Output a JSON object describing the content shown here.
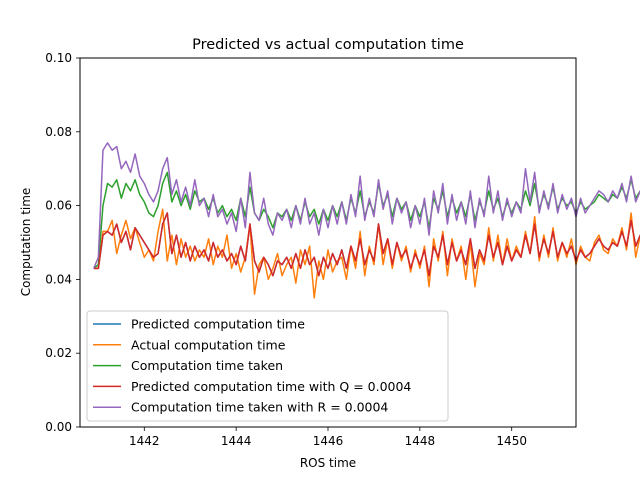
{
  "chart_data": {
    "type": "line",
    "title": "Predicted vs actual computation time",
    "xlabel": "ROS time",
    "ylabel": "Computation time",
    "xlim": [
      1440.6,
      1451.4
    ],
    "ylim": [
      0.0,
      0.1
    ],
    "xticks": [
      {
        "value": 1442,
        "label": "1442"
      },
      {
        "value": 1444,
        "label": "1444"
      },
      {
        "value": 1446,
        "label": "1446"
      },
      {
        "value": 1448,
        "label": "1448"
      },
      {
        "value": 1450,
        "label": "1450"
      }
    ],
    "yticks": [
      {
        "value": 0.0,
        "label": "0.00"
      },
      {
        "value": 0.02,
        "label": "0.02"
      },
      {
        "value": 0.04,
        "label": "0.04"
      },
      {
        "value": 0.06,
        "label": "0.06"
      },
      {
        "value": 0.08,
        "label": "0.08"
      },
      {
        "value": 0.1,
        "label": "0.10"
      }
    ],
    "grid": false,
    "legend_position": "lower-left",
    "x_start": 1440.9,
    "x_step": 0.1,
    "series": [
      {
        "name": "Predicted computation time",
        "color": "#1f77b4",
        "values": [
          0.043,
          0.043,
          0.052,
          0.053,
          0.052,
          0.055,
          0.05,
          0.053,
          0.048,
          0.054,
          0.052,
          0.05,
          0.048,
          0.046,
          0.047,
          0.055,
          0.058,
          0.047,
          0.052,
          0.046,
          0.05,
          0.045,
          0.049,
          0.046,
          0.048,
          0.045,
          0.05,
          0.046,
          0.048,
          0.045,
          0.047,
          0.044,
          0.049,
          0.045,
          0.055,
          0.045,
          0.042,
          0.046,
          0.044,
          0.041,
          0.045,
          0.044,
          0.046,
          0.043,
          0.047,
          0.043,
          0.048,
          0.044,
          0.046,
          0.041,
          0.046,
          0.043,
          0.047,
          0.044,
          0.048,
          0.043,
          0.049,
          0.045,
          0.051,
          0.044,
          0.048,
          0.045,
          0.055,
          0.047,
          0.051,
          0.044,
          0.05,
          0.046,
          0.048,
          0.043,
          0.047,
          0.044,
          0.048,
          0.041,
          0.049,
          0.046,
          0.052,
          0.044,
          0.05,
          0.045,
          0.048,
          0.044,
          0.051,
          0.043,
          0.048,
          0.045,
          0.052,
          0.046,
          0.05,
          0.044,
          0.049,
          0.045,
          0.048,
          0.046,
          0.052,
          0.047,
          0.055,
          0.046,
          0.051,
          0.047,
          0.053,
          0.046,
          0.05,
          0.047,
          0.049,
          0.045,
          0.048,
          0.046,
          0.047,
          0.049,
          0.051,
          0.049,
          0.048,
          0.05,
          0.049,
          0.053,
          0.049,
          0.056,
          0.049,
          0.052,
          0.053,
          0.048,
          0.05,
          0.048,
          0.049,
          0.055,
          0.051,
          0.05,
          0.049,
          0.052,
          0.053,
          0.049,
          0.05,
          0.054,
          0.051,
          0.055,
          0.052
        ]
      },
      {
        "name": "Actual computation time",
        "color": "#ff7f0e",
        "values": [
          0.043,
          0.043,
          0.053,
          0.053,
          0.056,
          0.047,
          0.052,
          0.056,
          0.051,
          0.054,
          0.05,
          0.046,
          0.048,
          0.045,
          0.053,
          0.059,
          0.045,
          0.052,
          0.044,
          0.051,
          0.046,
          0.049,
          0.045,
          0.048,
          0.046,
          0.051,
          0.044,
          0.049,
          0.046,
          0.052,
          0.043,
          0.047,
          0.042,
          0.046,
          0.055,
          0.036,
          0.044,
          0.046,
          0.04,
          0.043,
          0.047,
          0.041,
          0.044,
          0.046,
          0.039,
          0.048,
          0.044,
          0.049,
          0.035,
          0.045,
          0.04,
          0.048,
          0.042,
          0.045,
          0.046,
          0.04,
          0.049,
          0.043,
          0.053,
          0.041,
          0.049,
          0.044,
          0.055,
          0.044,
          0.051,
          0.043,
          0.05,
          0.045,
          0.049,
          0.042,
          0.048,
          0.043,
          0.049,
          0.038,
          0.051,
          0.045,
          0.053,
          0.041,
          0.051,
          0.045,
          0.049,
          0.04,
          0.05,
          0.038,
          0.047,
          0.044,
          0.054,
          0.045,
          0.052,
          0.044,
          0.051,
          0.045,
          0.049,
          0.046,
          0.053,
          0.047,
          0.057,
          0.045,
          0.052,
          0.046,
          0.054,
          0.045,
          0.05,
          0.046,
          0.051,
          0.044,
          0.049,
          0.046,
          0.045,
          0.05,
          0.052,
          0.048,
          0.047,
          0.051,
          0.049,
          0.054,
          0.048,
          0.058,
          0.046,
          0.052,
          0.054,
          0.045,
          0.051,
          0.047,
          0.05,
          0.056,
          0.053,
          0.05,
          0.048,
          0.053,
          0.054,
          0.048,
          0.051,
          0.056,
          0.052,
          0.056,
          0.049
        ]
      },
      {
        "name": "Computation time taken",
        "color": "#2ca02c",
        "values": [
          0.043,
          0.044,
          0.06,
          0.066,
          0.065,
          0.067,
          0.062,
          0.066,
          0.064,
          0.067,
          0.063,
          0.061,
          0.058,
          0.057,
          0.06,
          0.066,
          0.069,
          0.061,
          0.064,
          0.06,
          0.063,
          0.059,
          0.064,
          0.061,
          0.062,
          0.059,
          0.062,
          0.058,
          0.06,
          0.057,
          0.059,
          0.056,
          0.062,
          0.057,
          0.065,
          0.058,
          0.056,
          0.059,
          0.057,
          0.054,
          0.058,
          0.057,
          0.059,
          0.056,
          0.06,
          0.056,
          0.061,
          0.057,
          0.059,
          0.055,
          0.059,
          0.056,
          0.06,
          0.057,
          0.061,
          0.056,
          0.062,
          0.058,
          0.064,
          0.057,
          0.061,
          0.058,
          0.066,
          0.06,
          0.063,
          0.057,
          0.062,
          0.059,
          0.061,
          0.056,
          0.06,
          0.057,
          0.061,
          0.054,
          0.062,
          0.059,
          0.064,
          0.057,
          0.062,
          0.058,
          0.061,
          0.057,
          0.063,
          0.056,
          0.061,
          0.058,
          0.064,
          0.059,
          0.062,
          0.057,
          0.061,
          0.058,
          0.061,
          0.059,
          0.064,
          0.06,
          0.066,
          0.059,
          0.063,
          0.06,
          0.065,
          0.059,
          0.062,
          0.06,
          0.061,
          0.058,
          0.061,
          0.059,
          0.06,
          0.061,
          0.063,
          0.062,
          0.061,
          0.063,
          0.062,
          0.065,
          0.062,
          0.067,
          0.062,
          0.064,
          0.065,
          0.061,
          0.063,
          0.061,
          0.062,
          0.066,
          0.063,
          0.062,
          0.062,
          0.064,
          0.065,
          0.062,
          0.063,
          0.065,
          0.063,
          0.066,
          0.064
        ]
      },
      {
        "name": "Predicted computation time with Q = 0.0004",
        "color": "#d62728",
        "values": [
          0.043,
          0.043,
          0.052,
          0.053,
          0.052,
          0.055,
          0.05,
          0.053,
          0.048,
          0.054,
          0.052,
          0.05,
          0.048,
          0.046,
          0.047,
          0.055,
          0.058,
          0.047,
          0.052,
          0.046,
          0.05,
          0.045,
          0.049,
          0.046,
          0.048,
          0.045,
          0.05,
          0.046,
          0.048,
          0.045,
          0.047,
          0.044,
          0.049,
          0.045,
          0.055,
          0.045,
          0.042,
          0.046,
          0.044,
          0.041,
          0.045,
          0.044,
          0.046,
          0.043,
          0.047,
          0.043,
          0.048,
          0.044,
          0.046,
          0.041,
          0.046,
          0.043,
          0.047,
          0.044,
          0.048,
          0.043,
          0.049,
          0.045,
          0.051,
          0.044,
          0.048,
          0.045,
          0.055,
          0.047,
          0.051,
          0.044,
          0.05,
          0.046,
          0.048,
          0.043,
          0.047,
          0.044,
          0.048,
          0.041,
          0.049,
          0.046,
          0.052,
          0.044,
          0.05,
          0.045,
          0.048,
          0.044,
          0.051,
          0.043,
          0.048,
          0.045,
          0.052,
          0.046,
          0.05,
          0.044,
          0.049,
          0.045,
          0.048,
          0.046,
          0.052,
          0.047,
          0.055,
          0.046,
          0.051,
          0.047,
          0.053,
          0.046,
          0.05,
          0.047,
          0.049,
          0.045,
          0.048,
          0.046,
          0.047,
          0.049,
          0.051,
          0.049,
          0.048,
          0.05,
          0.049,
          0.053,
          0.049,
          0.056,
          0.049,
          0.052,
          0.053,
          0.048,
          0.05,
          0.048,
          0.049,
          0.055,
          0.051,
          0.05,
          0.049,
          0.052,
          0.053,
          0.049,
          0.05,
          0.054,
          0.051,
          0.055,
          0.052
        ]
      },
      {
        "name": "Computation time taken with R = 0.0004",
        "color": "#9467bd",
        "values": [
          0.043,
          0.046,
          0.075,
          0.077,
          0.075,
          0.076,
          0.07,
          0.072,
          0.069,
          0.074,
          0.068,
          0.066,
          0.063,
          0.061,
          0.064,
          0.07,
          0.073,
          0.063,
          0.067,
          0.061,
          0.065,
          0.06,
          0.067,
          0.06,
          0.062,
          0.057,
          0.063,
          0.057,
          0.059,
          0.055,
          0.058,
          0.053,
          0.062,
          0.054,
          0.069,
          0.058,
          0.056,
          0.062,
          0.055,
          0.052,
          0.058,
          0.056,
          0.059,
          0.054,
          0.06,
          0.055,
          0.062,
          0.055,
          0.058,
          0.052,
          0.059,
          0.054,
          0.06,
          0.055,
          0.061,
          0.055,
          0.063,
          0.057,
          0.068,
          0.056,
          0.062,
          0.057,
          0.067,
          0.059,
          0.064,
          0.055,
          0.062,
          0.058,
          0.061,
          0.054,
          0.06,
          0.055,
          0.062,
          0.052,
          0.064,
          0.058,
          0.066,
          0.055,
          0.063,
          0.056,
          0.061,
          0.055,
          0.064,
          0.054,
          0.062,
          0.057,
          0.068,
          0.058,
          0.064,
          0.056,
          0.062,
          0.057,
          0.061,
          0.058,
          0.07,
          0.061,
          0.069,
          0.058,
          0.064,
          0.059,
          0.066,
          0.058,
          0.063,
          0.059,
          0.062,
          0.057,
          0.062,
          0.058,
          0.06,
          0.062,
          0.064,
          0.063,
          0.061,
          0.064,
          0.062,
          0.066,
          0.061,
          0.068,
          0.061,
          0.064,
          0.066,
          0.06,
          0.063,
          0.06,
          0.062,
          0.067,
          0.063,
          0.062,
          0.061,
          0.064,
          0.066,
          0.061,
          0.063,
          0.066,
          0.063,
          0.066,
          0.064
        ]
      }
    ]
  }
}
